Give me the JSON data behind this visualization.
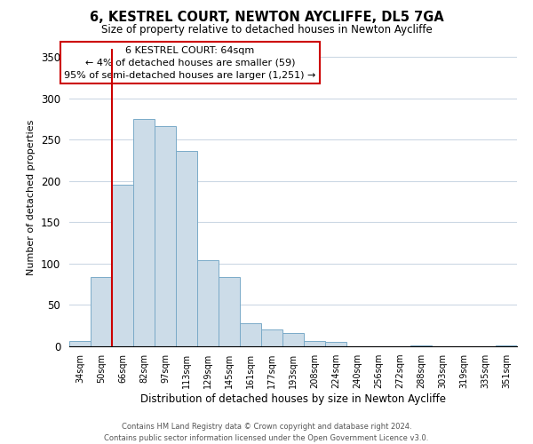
{
  "title": "6, KESTREL COURT, NEWTON AYCLIFFE, DL5 7GA",
  "subtitle": "Size of property relative to detached houses in Newton Aycliffe",
  "xlabel": "Distribution of detached houses by size in Newton Aycliffe",
  "ylabel": "Number of detached properties",
  "bin_labels": [
    "34sqm",
    "50sqm",
    "66sqm",
    "82sqm",
    "97sqm",
    "113sqm",
    "129sqm",
    "145sqm",
    "161sqm",
    "177sqm",
    "193sqm",
    "208sqm",
    "224sqm",
    "240sqm",
    "256sqm",
    "272sqm",
    "288sqm",
    "303sqm",
    "319sqm",
    "335sqm",
    "351sqm"
  ],
  "bar_heights": [
    6,
    84,
    196,
    275,
    266,
    236,
    104,
    84,
    28,
    20,
    16,
    6,
    5,
    0,
    0,
    0,
    1,
    0,
    0,
    0,
    1
  ],
  "bar_color": "#ccdce8",
  "bar_edge_color": "#7aaac8",
  "vline_color": "#cc0000",
  "box_edge_color": "#cc0000",
  "ylim": [
    0,
    360
  ],
  "yticks": [
    0,
    50,
    100,
    150,
    200,
    250,
    300,
    350
  ],
  "footer_line1": "Contains HM Land Registry data © Crown copyright and database right 2024.",
  "footer_line2": "Contains public sector information licensed under the Open Government Licence v3.0.",
  "background_color": "#ffffff",
  "grid_color": "#ccd8e4",
  "annotation_line1": "6 KESTREL COURT: 64sqm",
  "annotation_line2": "← 4% of detached houses are smaller (59)",
  "annotation_line3": "95% of semi-detached houses are larger (1,251) →"
}
